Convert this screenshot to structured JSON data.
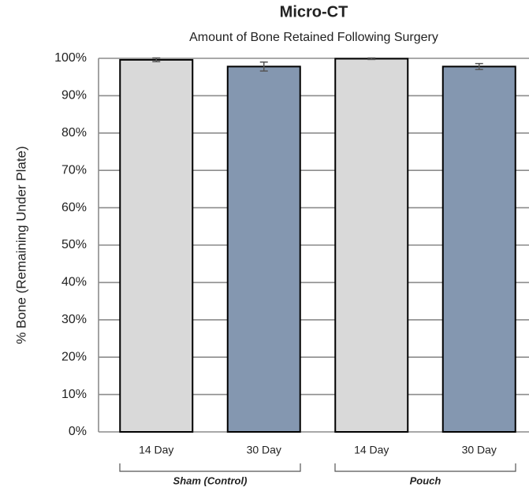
{
  "chart_data": {
    "type": "bar",
    "title": "Micro-CT",
    "subtitle": "Amount of Bone Retained Following Surgery",
    "y_label": "% Bone (Remaining Under Plate)",
    "categories": [
      "14 Day",
      "30 Day",
      "14 Day",
      "30 Day"
    ],
    "groups": [
      "Sham (Control)",
      "Pouch"
    ],
    "values": [
      99.6,
      97.8,
      99.9,
      97.8
    ],
    "errors": [
      0.5,
      1.2,
      0.2,
      0.8
    ],
    "colors": [
      "#d9d9d9",
      "#8497b0",
      "#d9d9d9",
      "#8497b0"
    ],
    "ylim": [
      0,
      100
    ],
    "yticks": [
      {
        "value": 0,
        "label": "0%"
      },
      {
        "value": 10,
        "label": "10%"
      },
      {
        "value": 20,
        "label": "20%"
      },
      {
        "value": 30,
        "label": "30%"
      },
      {
        "value": 40,
        "label": "40%"
      },
      {
        "value": 50,
        "label": "50%"
      },
      {
        "value": 60,
        "label": "60%"
      },
      {
        "value": 70,
        "label": "70%"
      },
      {
        "value": 80,
        "label": "80%"
      },
      {
        "value": 90,
        "label": "90%"
      },
      {
        "value": 100,
        "label": "100%"
      }
    ],
    "grid": true
  }
}
